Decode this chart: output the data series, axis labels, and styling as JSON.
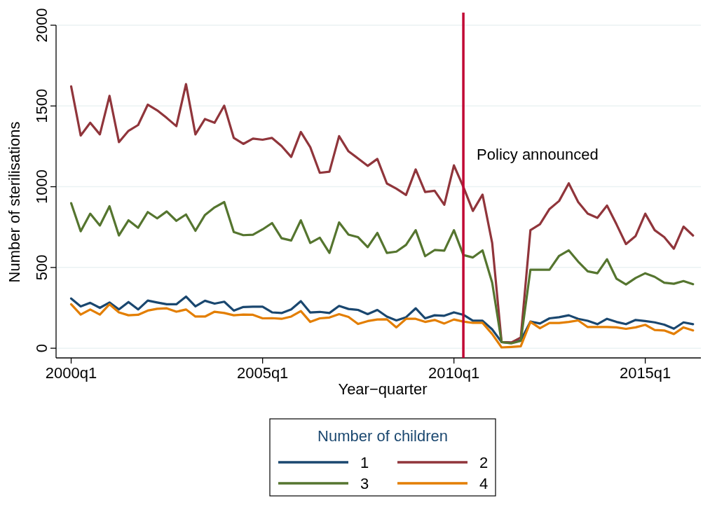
{
  "chart_data": {
    "type": "line",
    "xlabel": "Year−quarter",
    "ylabel": "Number of sterilisations",
    "legend_title": "Number of children",
    "legend": "bottom",
    "grid": "y",
    "x": [
      "2000-01",
      "2000-04",
      "2000-07",
      "2000-10",
      "2001-01",
      "2001-04",
      "2001-07",
      "2001-10",
      "2002-01",
      "2002-04",
      "2002-07",
      "2002-10",
      "2003-01",
      "2003-04",
      "2003-07",
      "2003-10",
      "2004-01",
      "2004-04",
      "2004-07",
      "2004-10",
      "2005-01",
      "2005-04",
      "2005-07",
      "2005-10",
      "2006-01",
      "2006-04",
      "2006-07",
      "2006-10",
      "2007-01",
      "2007-04",
      "2007-07",
      "2007-10",
      "2008-01",
      "2008-04",
      "2008-07",
      "2008-10",
      "2009-01",
      "2009-04",
      "2009-07",
      "2009-10",
      "2010-01",
      "2010-04",
      "2010-07",
      "2010-10",
      "2011-01",
      "2011-04",
      "2011-07",
      "2011-10",
      "2012-01",
      "2012-04",
      "2012-07",
      "2012-10",
      "2013-01",
      "2013-04",
      "2013-07",
      "2013-10",
      "2014-01",
      "2014-04",
      "2014-07",
      "2014-10",
      "2015-01",
      "2015-04",
      "2015-07",
      "2015-10",
      "2016-01",
      "2016-04"
    ],
    "xlim": [
      "1999-08-10",
      "2016-06-15"
    ],
    "xticks": [
      {
        "value": "2000-01",
        "label": "2000q1"
      },
      {
        "value": "2005-01",
        "label": "2005q1"
      },
      {
        "value": "2010-01",
        "label": "2010q1"
      },
      {
        "value": "2015-01",
        "label": "2015q1"
      }
    ],
    "ylim": [
      -60,
      2000
    ],
    "yticks": [
      0,
      500,
      1000,
      1500,
      2000
    ],
    "ref_lines": [
      {
        "axis": "x",
        "value": "2010-04",
        "label": "Policy announced",
        "color": "#c10534"
      }
    ],
    "series": [
      {
        "name": "1",
        "color": "#1a476f",
        "values": [
          308,
          259,
          281,
          250,
          283,
          240,
          286,
          240,
          295,
          283,
          272,
          272,
          320,
          259,
          294,
          276,
          288,
          233,
          255,
          257,
          257,
          222,
          218,
          240,
          291,
          221,
          225,
          218,
          262,
          243,
          237,
          211,
          237,
          196,
          172,
          192,
          247,
          185,
          204,
          201,
          222,
          207,
          170,
          170,
          117,
          38,
          35,
          48,
          165,
          153,
          185,
          192,
          204,
          182,
          170,
          149,
          182,
          163,
          149,
          175,
          168,
          160,
          146,
          121,
          160,
          149
        ]
      },
      {
        "name": "2",
        "color": "#90353b",
        "values": [
          1621,
          1317,
          1396,
          1324,
          1563,
          1276,
          1346,
          1382,
          1508,
          1473,
          1426,
          1375,
          1635,
          1324,
          1419,
          1396,
          1502,
          1302,
          1265,
          1298,
          1291,
          1302,
          1252,
          1184,
          1339,
          1245,
          1086,
          1093,
          1313,
          1219,
          1175,
          1129,
          1172,
          1020,
          988,
          949,
          1107,
          967,
          975,
          888,
          1132,
          999,
          850,
          951,
          652,
          38,
          35,
          66,
          731,
          768,
          862,
          912,
          1021,
          905,
          833,
          807,
          883,
          768,
          645,
          695,
          833,
          731,
          688,
          616,
          753,
          698
        ]
      },
      {
        "name": "3",
        "color": "#55752f",
        "values": [
          898,
          724,
          833,
          760,
          879,
          698,
          792,
          746,
          843,
          804,
          847,
          789,
          828,
          727,
          825,
          872,
          905,
          720,
          700,
          703,
          736,
          775,
          681,
          667,
          792,
          652,
          684,
          590,
          779,
          703,
          688,
          626,
          714,
          590,
          598,
          640,
          731,
          570,
          608,
          604,
          731,
          577,
          562,
          606,
          406,
          38,
          30,
          45,
          486,
          486,
          486,
          572,
          606,
          536,
          476,
          464,
          551,
          431,
          395,
          435,
          464,
          442,
          406,
          399,
          416,
          396
        ]
      },
      {
        "name": "4",
        "color": "#e37e00",
        "values": [
          272,
          208,
          240,
          208,
          272,
          222,
          204,
          207,
          233,
          244,
          247,
          226,
          240,
          196,
          196,
          226,
          218,
          204,
          208,
          207,
          185,
          186,
          182,
          196,
          230,
          163,
          185,
          190,
          211,
          194,
          150,
          168,
          178,
          179,
          129,
          182,
          182,
          163,
          175,
          153,
          178,
          165,
          157,
          157,
          88,
          5,
          8,
          12,
          163,
          124,
          156,
          156,
          163,
          172,
          131,
          131,
          131,
          129,
          120,
          129,
          145,
          113,
          110,
          88,
          129,
          110
        ]
      }
    ]
  }
}
